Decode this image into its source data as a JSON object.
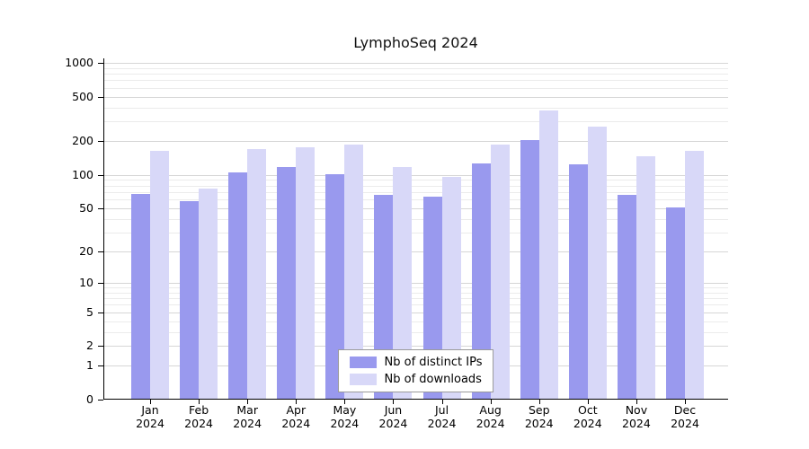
{
  "chart_data": {
    "type": "bar",
    "title": "LymphoSeq 2024",
    "categories": [
      "Jan 2024",
      "Feb 2024",
      "Mar 2024",
      "Apr 2024",
      "May 2024",
      "Jun 2024",
      "Jul 2024",
      "Aug 2024",
      "Sep 2024",
      "Oct 2024",
      "Nov 2024",
      "Dec 2024"
    ],
    "series": [
      {
        "name": "Nb of distinct IPs",
        "color": "#9999ee",
        "values": [
          67,
          58,
          105,
          118,
          101,
          66,
          63,
          127,
          205,
          125,
          66,
          51
        ]
      },
      {
        "name": "Nb of downloads",
        "color": "#d8d8f8",
        "values": [
          165,
          75,
          170,
          178,
          185,
          118,
          96,
          188,
          375,
          270,
          148,
          165
        ]
      }
    ],
    "yscale": "log1p",
    "yticks": [
      0,
      1,
      2,
      5,
      10,
      20,
      50,
      100,
      200,
      500,
      1000
    ],
    "yticks_minor": [
      3,
      4,
      6,
      7,
      8,
      9,
      30,
      40,
      60,
      70,
      80,
      90,
      300,
      400,
      600,
      700,
      800,
      900
    ],
    "ylim": [
      0,
      1100
    ],
    "grid": true,
    "legend_position": "bottom-center-inside",
    "colors": {
      "grid_major": "#d6d6d6",
      "grid_minor": "#ebebeb",
      "axis": "#000000",
      "background": "#ffffff",
      "text": "#000000"
    }
  }
}
